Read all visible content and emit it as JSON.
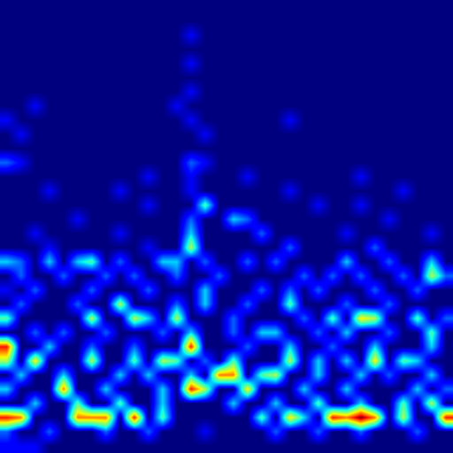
{
  "chart_data": {
    "type": "heatmap",
    "color": "jet",
    "tick_labels": false,
    "cells": [
      [
        0,
        0,
        0,
        0,
        0,
        0,
        0,
        0,
        0,
        0,
        0,
        0,
        0,
        0,
        0,
        0,
        0,
        0,
        0,
        0,
        0,
        0,
        0,
        0,
        0,
        0,
        0,
        0,
        0,
        0,
        0,
        0
      ],
      [
        0,
        0,
        0,
        0,
        0,
        0,
        0,
        0,
        0,
        0,
        0,
        0,
        0,
        0,
        0,
        0,
        0,
        0,
        0,
        0,
        0,
        0,
        0,
        0,
        0,
        0,
        0,
        0,
        0,
        0,
        0,
        0
      ],
      [
        0,
        0,
        0,
        0,
        0,
        0,
        0,
        0,
        0,
        0,
        0,
        0,
        0,
        1,
        0,
        0,
        0,
        0,
        0,
        0,
        0,
        0,
        0,
        0,
        0,
        0,
        0,
        0,
        0,
        0,
        0,
        0
      ],
      [
        0,
        0,
        0,
        0,
        0,
        0,
        0,
        0,
        0,
        0,
        0,
        0,
        0,
        0,
        0,
        0,
        0,
        0,
        0,
        0,
        0,
        0,
        0,
        0,
        0,
        0,
        0,
        0,
        0,
        0,
        0,
        0
      ],
      [
        0,
        0,
        0,
        0,
        0,
        0,
        0,
        0,
        0,
        0,
        0,
        0,
        0,
        1,
        0,
        0,
        0,
        0,
        0,
        0,
        0,
        0,
        0,
        0,
        0,
        0,
        0,
        0,
        0,
        0,
        0,
        0
      ],
      [
        0,
        0,
        0,
        0,
        0,
        0,
        0,
        0,
        0,
        0,
        0,
        0,
        0,
        0,
        0,
        0,
        0,
        0,
        0,
        0,
        0,
        0,
        0,
        0,
        0,
        0,
        0,
        0,
        0,
        0,
        0,
        0
      ],
      [
        0,
        0,
        0,
        0,
        0,
        0,
        0,
        0,
        0,
        0,
        0,
        0,
        0,
        1,
        0,
        0,
        0,
        0,
        0,
        0,
        0,
        0,
        0,
        0,
        0,
        0,
        0,
        0,
        0,
        0,
        0,
        0
      ],
      [
        0,
        0,
        1,
        0,
        0,
        0,
        0,
        0,
        0,
        0,
        0,
        0,
        1,
        0,
        0,
        0,
        0,
        0,
        0,
        0,
        0,
        0,
        0,
        0,
        0,
        0,
        0,
        0,
        0,
        0,
        0,
        0
      ],
      [
        1,
        0,
        0,
        0,
        0,
        0,
        0,
        0,
        0,
        0,
        0,
        0,
        0,
        1,
        0,
        0,
        0,
        0,
        0,
        0,
        1,
        0,
        0,
        0,
        0,
        0,
        0,
        0,
        0,
        0,
        0,
        0
      ],
      [
        0,
        1,
        0,
        0,
        0,
        0,
        0,
        0,
        0,
        0,
        0,
        0,
        0,
        0,
        1,
        0,
        0,
        0,
        0,
        0,
        0,
        0,
        0,
        0,
        0,
        0,
        0,
        0,
        0,
        0,
        0,
        0
      ],
      [
        0,
        0,
        0,
        0,
        0,
        0,
        0,
        0,
        0,
        0,
        0,
        0,
        0,
        0,
        0,
        0,
        0,
        0,
        0,
        0,
        0,
        0,
        0,
        0,
        0,
        0,
        0,
        0,
        0,
        0,
        0,
        0
      ],
      [
        2,
        1,
        0,
        0,
        0,
        0,
        0,
        0,
        0,
        0,
        0,
        0,
        0,
        2,
        1,
        0,
        0,
        0,
        0,
        0,
        0,
        0,
        0,
        0,
        0,
        0,
        0,
        0,
        0,
        0,
        0,
        0
      ],
      [
        0,
        0,
        0,
        0,
        0,
        0,
        0,
        0,
        0,
        0,
        1,
        0,
        0,
        1,
        0,
        0,
        0,
        1,
        0,
        0,
        0,
        0,
        0,
        0,
        0,
        1,
        0,
        0,
        0,
        0,
        0,
        0
      ],
      [
        0,
        0,
        0,
        1,
        0,
        0,
        0,
        0,
        1,
        0,
        0,
        0,
        0,
        1,
        0,
        0,
        0,
        0,
        0,
        0,
        1,
        0,
        0,
        0,
        0,
        0,
        0,
        0,
        1,
        0,
        0,
        0
      ],
      [
        0,
        0,
        0,
        0,
        0,
        0,
        0,
        0,
        0,
        0,
        1,
        0,
        0,
        0,
        4,
        0,
        0,
        0,
        0,
        0,
        0,
        0,
        1,
        0,
        0,
        1,
        0,
        0,
        0,
        0,
        0,
        0
      ],
      [
        0,
        0,
        0,
        0,
        0,
        1,
        0,
        0,
        0,
        0,
        0,
        0,
        0,
        2,
        0,
        0,
        3,
        2,
        0,
        0,
        0,
        0,
        0,
        0,
        0,
        0,
        0,
        1,
        0,
        0,
        0,
        0
      ],
      [
        0,
        0,
        1,
        0,
        0,
        0,
        0,
        0,
        1,
        0,
        0,
        0,
        0,
        3,
        0,
        0,
        0,
        0,
        2,
        0,
        0,
        0,
        0,
        0,
        1,
        0,
        0,
        0,
        0,
        0,
        1,
        0
      ],
      [
        0,
        0,
        0,
        1,
        0,
        0,
        0,
        0,
        0,
        0,
        1,
        0,
        0,
        5,
        0,
        0,
        0,
        0,
        0,
        0,
        2,
        0,
        0,
        0,
        0,
        0,
        2,
        0,
        0,
        0,
        0,
        0
      ],
      [
        3,
        2,
        0,
        3,
        0,
        3,
        4,
        0,
        2,
        0,
        0,
        3,
        3,
        0,
        2,
        0,
        0,
        2,
        0,
        2,
        0,
        0,
        0,
        0,
        3,
        0,
        0,
        2,
        0,
        0,
        3,
        0
      ],
      [
        0,
        2,
        0,
        0,
        2,
        0,
        0,
        2,
        0,
        2,
        0,
        0,
        2,
        0,
        0,
        2,
        0,
        0,
        0,
        0,
        0,
        2,
        0,
        2,
        0,
        2,
        0,
        0,
        2,
        0,
        5,
        2
      ],
      [
        1,
        0,
        2,
        0,
        0,
        0,
        2,
        0,
        0,
        0,
        2,
        0,
        0,
        0,
        3,
        0,
        0,
        0,
        2,
        0,
        2,
        0,
        2,
        0,
        0,
        0,
        2,
        0,
        0,
        2,
        0,
        0
      ],
      [
        0,
        2,
        0,
        0,
        0,
        2,
        0,
        0,
        5,
        0,
        0,
        0,
        2,
        0,
        3,
        0,
        0,
        2,
        0,
        0,
        4,
        0,
        0,
        0,
        2,
        0,
        0,
        2,
        0,
        0,
        0,
        0
      ],
      [
        4,
        0,
        0,
        0,
        0,
        0,
        5,
        0,
        0,
        5,
        3,
        0,
        5,
        0,
        0,
        0,
        2,
        0,
        0,
        0,
        0,
        2,
        0,
        4,
        0,
        6,
        5,
        0,
        0,
        4,
        0,
        2
      ],
      [
        0,
        0,
        2,
        0,
        2,
        0,
        0,
        2,
        0,
        0,
        0,
        2,
        0,
        3,
        0,
        0,
        2,
        0,
        3,
        3,
        0,
        0,
        2,
        0,
        3,
        0,
        0,
        2,
        0,
        0,
        4,
        0
      ],
      [
        8,
        0,
        0,
        3,
        0,
        0,
        2,
        0,
        0,
        2,
        0,
        0,
        0,
        8,
        0,
        0,
        0,
        2,
        0,
        0,
        3,
        0,
        0,
        2,
        0,
        0,
        3,
        0,
        0,
        0,
        3,
        0
      ],
      [
        5,
        0,
        6,
        0,
        0,
        0,
        5,
        0,
        0,
        4,
        0,
        5,
        4,
        0,
        2,
        0,
        4,
        0,
        0,
        0,
        5,
        0,
        3,
        0,
        3,
        0,
        6,
        0,
        4,
        3,
        0,
        0
      ],
      [
        0,
        3,
        0,
        0,
        3,
        0,
        0,
        0,
        3,
        0,
        3,
        0,
        0,
        3,
        0,
        7,
        7,
        0,
        4,
        5,
        0,
        0,
        3,
        0,
        0,
        3,
        0,
        2,
        0,
        0,
        3,
        0
      ],
      [
        3,
        0,
        0,
        0,
        7,
        0,
        0,
        3,
        0,
        0,
        0,
        3,
        0,
        8,
        5,
        0,
        0,
        6,
        0,
        0,
        0,
        3,
        0,
        0,
        3,
        0,
        0,
        0,
        0,
        3,
        0,
        2
      ],
      [
        0,
        0,
        3,
        0,
        0,
        4,
        0,
        0,
        4,
        0,
        0,
        3,
        0,
        0,
        0,
        0,
        3,
        0,
        0,
        3,
        0,
        0,
        4,
        0,
        0,
        3,
        0,
        0,
        4,
        0,
        5,
        0
      ],
      [
        8,
        7,
        0,
        0,
        0,
        7,
        7,
        7,
        0,
        8,
        0,
        4,
        0,
        0,
        0,
        0,
        0,
        0,
        4,
        0,
        6,
        3,
        0,
        8,
        7,
        9,
        7,
        0,
        5,
        0,
        0,
        8
      ],
      [
        2,
        0,
        0,
        2,
        0,
        0,
        0,
        2,
        0,
        0,
        2,
        0,
        0,
        0,
        1,
        0,
        0,
        0,
        0,
        2,
        0,
        0,
        2,
        0,
        0,
        2,
        0,
        0,
        0,
        2,
        0,
        0
      ],
      [
        1,
        1,
        1,
        0,
        0,
        0,
        0,
        0,
        0,
        0,
        0,
        0,
        0,
        0,
        0,
        0,
        0,
        0,
        0,
        0,
        0,
        0,
        0,
        0,
        0,
        0,
        0,
        0,
        0,
        0,
        0,
        0
      ]
    ]
  }
}
